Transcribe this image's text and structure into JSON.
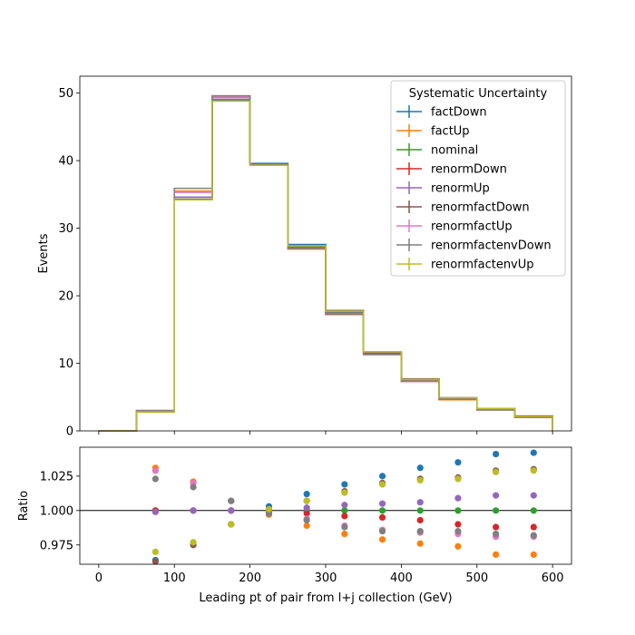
{
  "chart_data": [
    {
      "type": "line",
      "panel": "top",
      "drawstyle": "steps",
      "xlabel": "",
      "ylabel": "Events",
      "xlim": [
        -25,
        625
      ],
      "ylim": [
        0,
        52.5
      ],
      "x_ticks": [
        0,
        100,
        200,
        300,
        400,
        500,
        600
      ],
      "y_ticks": [
        0,
        10,
        20,
        30,
        40,
        50
      ],
      "y_tick_labels": [
        "0",
        "10",
        "20",
        "30",
        "40",
        "50"
      ],
      "bin_edges": [
        0,
        50,
        100,
        150,
        200,
        250,
        300,
        350,
        400,
        450,
        500,
        550,
        600
      ],
      "legend": {
        "title": "Systematic Uncertainty",
        "placement": "top-right"
      },
      "series": [
        {
          "name": "factDown",
          "color": "#1f77b4",
          "values": [
            0,
            3.0,
            34.3,
            49.0,
            39.6,
            27.6,
            17.8,
            11.6,
            7.6,
            4.9,
            3.3,
            2.2
          ]
        },
        {
          "name": "factUp",
          "color": "#ff7f0e",
          "values": [
            0,
            3.0,
            35.5,
            49.6,
            39.4,
            26.9,
            17.2,
            11.3,
            7.3,
            4.6,
            3.1,
            2.0
          ]
        },
        {
          "name": "nominal",
          "color": "#2ca02c",
          "values": [
            0,
            2.9,
            34.6,
            49.1,
            39.5,
            27.2,
            17.5,
            11.5,
            7.5,
            4.8,
            3.2,
            2.1
          ]
        },
        {
          "name": "renormDown",
          "color": "#d62728",
          "values": [
            0,
            2.9,
            34.6,
            49.1,
            39.5,
            27.0,
            17.3,
            11.4,
            7.4,
            4.7,
            3.1,
            2.0
          ]
        },
        {
          "name": "renormUp",
          "color": "#9467bd",
          "values": [
            0,
            2.9,
            34.6,
            49.1,
            39.5,
            27.3,
            17.6,
            11.6,
            7.6,
            4.8,
            3.2,
            2.1
          ]
        },
        {
          "name": "renormfactDown",
          "color": "#8c564b",
          "values": [
            0,
            2.8,
            34.3,
            49.4,
            39.5,
            27.4,
            17.8,
            11.7,
            7.7,
            4.9,
            3.3,
            2.2
          ]
        },
        {
          "name": "renormfactUp",
          "color": "#e377c2",
          "values": [
            0,
            3.0,
            35.3,
            49.4,
            39.4,
            27.0,
            17.3,
            11.3,
            7.3,
            4.7,
            3.1,
            2.1
          ]
        },
        {
          "name": "renormfactenvDown",
          "color": "#7f7f7f",
          "values": [
            0,
            3.0,
            35.9,
            49.6,
            39.4,
            27.0,
            17.3,
            11.3,
            7.4,
            4.7,
            3.1,
            2.0
          ]
        },
        {
          "name": "renormfactenvUp",
          "color": "#bcbd22",
          "values": [
            0,
            2.8,
            34.2,
            48.8,
            39.3,
            27.4,
            17.7,
            11.7,
            7.6,
            4.9,
            3.3,
            2.1
          ]
        }
      ]
    },
    {
      "type": "scatter",
      "panel": "bottom",
      "xlabel": "Leading pt of pair from l+j collection (GeV)",
      "ylabel": "Ratio",
      "xlim": [
        -25,
        625
      ],
      "ylim": [
        0.961,
        1.046
      ],
      "x_ticks": [
        0,
        100,
        200,
        300,
        400,
        500,
        600
      ],
      "x_tick_labels": [
        "0",
        "100",
        "200",
        "300",
        "400",
        "500",
        "600"
      ],
      "y_ticks": [
        0.975,
        1.0,
        1.025
      ],
      "y_tick_labels": [
        "0.975",
        "1.000",
        "1.025"
      ],
      "reference_line": 1.0,
      "x": [
        75,
        125,
        175,
        225,
        275,
        325,
        375,
        425,
        475,
        525,
        575
      ],
      "series": [
        {
          "name": "factDown",
          "color": "#1f77b4",
          "values": [
            0.964,
            0.975,
            0.99,
            1.003,
            1.012,
            1.019,
            1.025,
            1.031,
            1.035,
            1.041,
            1.042
          ]
        },
        {
          "name": "factUp",
          "color": "#ff7f0e",
          "values": [
            1.031,
            1.021,
            1.007,
            0.997,
            0.989,
            0.983,
            0.979,
            0.976,
            0.974,
            0.968,
            0.968
          ]
        },
        {
          "name": "nominal",
          "color": "#2ca02c",
          "values": [
            1.0,
            1.0,
            1.0,
            1.0,
            1.0,
            1.0,
            1.0,
            1.0,
            1.0,
            1.0,
            1.0
          ]
        },
        {
          "name": "renormDown",
          "color": "#d62728",
          "values": [
            1.0,
            1.0,
            1.0,
            0.999,
            0.998,
            0.996,
            0.995,
            0.993,
            0.99,
            0.988,
            0.988
          ]
        },
        {
          "name": "renormUp",
          "color": "#9467bd",
          "values": [
            0.999,
            1.0,
            1.0,
            1.0,
            1.002,
            1.004,
            1.005,
            1.006,
            1.009,
            1.011,
            1.011
          ]
        },
        {
          "name": "renormfactDown",
          "color": "#8c564b",
          "values": [
            0.963,
            0.975,
            0.99,
            1.001,
            1.007,
            1.014,
            1.02,
            1.023,
            1.024,
            1.029,
            1.03
          ]
        },
        {
          "name": "renormfactUp",
          "color": "#e377c2",
          "values": [
            1.029,
            1.02,
            1.007,
            0.998,
            0.994,
            0.989,
            0.986,
            0.984,
            0.983,
            0.981,
            0.981
          ]
        },
        {
          "name": "renormfactenvDown",
          "color": "#7f7f7f",
          "values": [
            1.023,
            1.017,
            1.007,
            0.998,
            0.993,
            0.988,
            0.985,
            0.985,
            0.985,
            0.983,
            0.982
          ]
        },
        {
          "name": "renormfactenvUp",
          "color": "#bcbd22",
          "values": [
            0.97,
            0.977,
            0.99,
            1.001,
            1.007,
            1.013,
            1.019,
            1.022,
            1.023,
            1.028,
            1.029
          ]
        }
      ]
    }
  ]
}
